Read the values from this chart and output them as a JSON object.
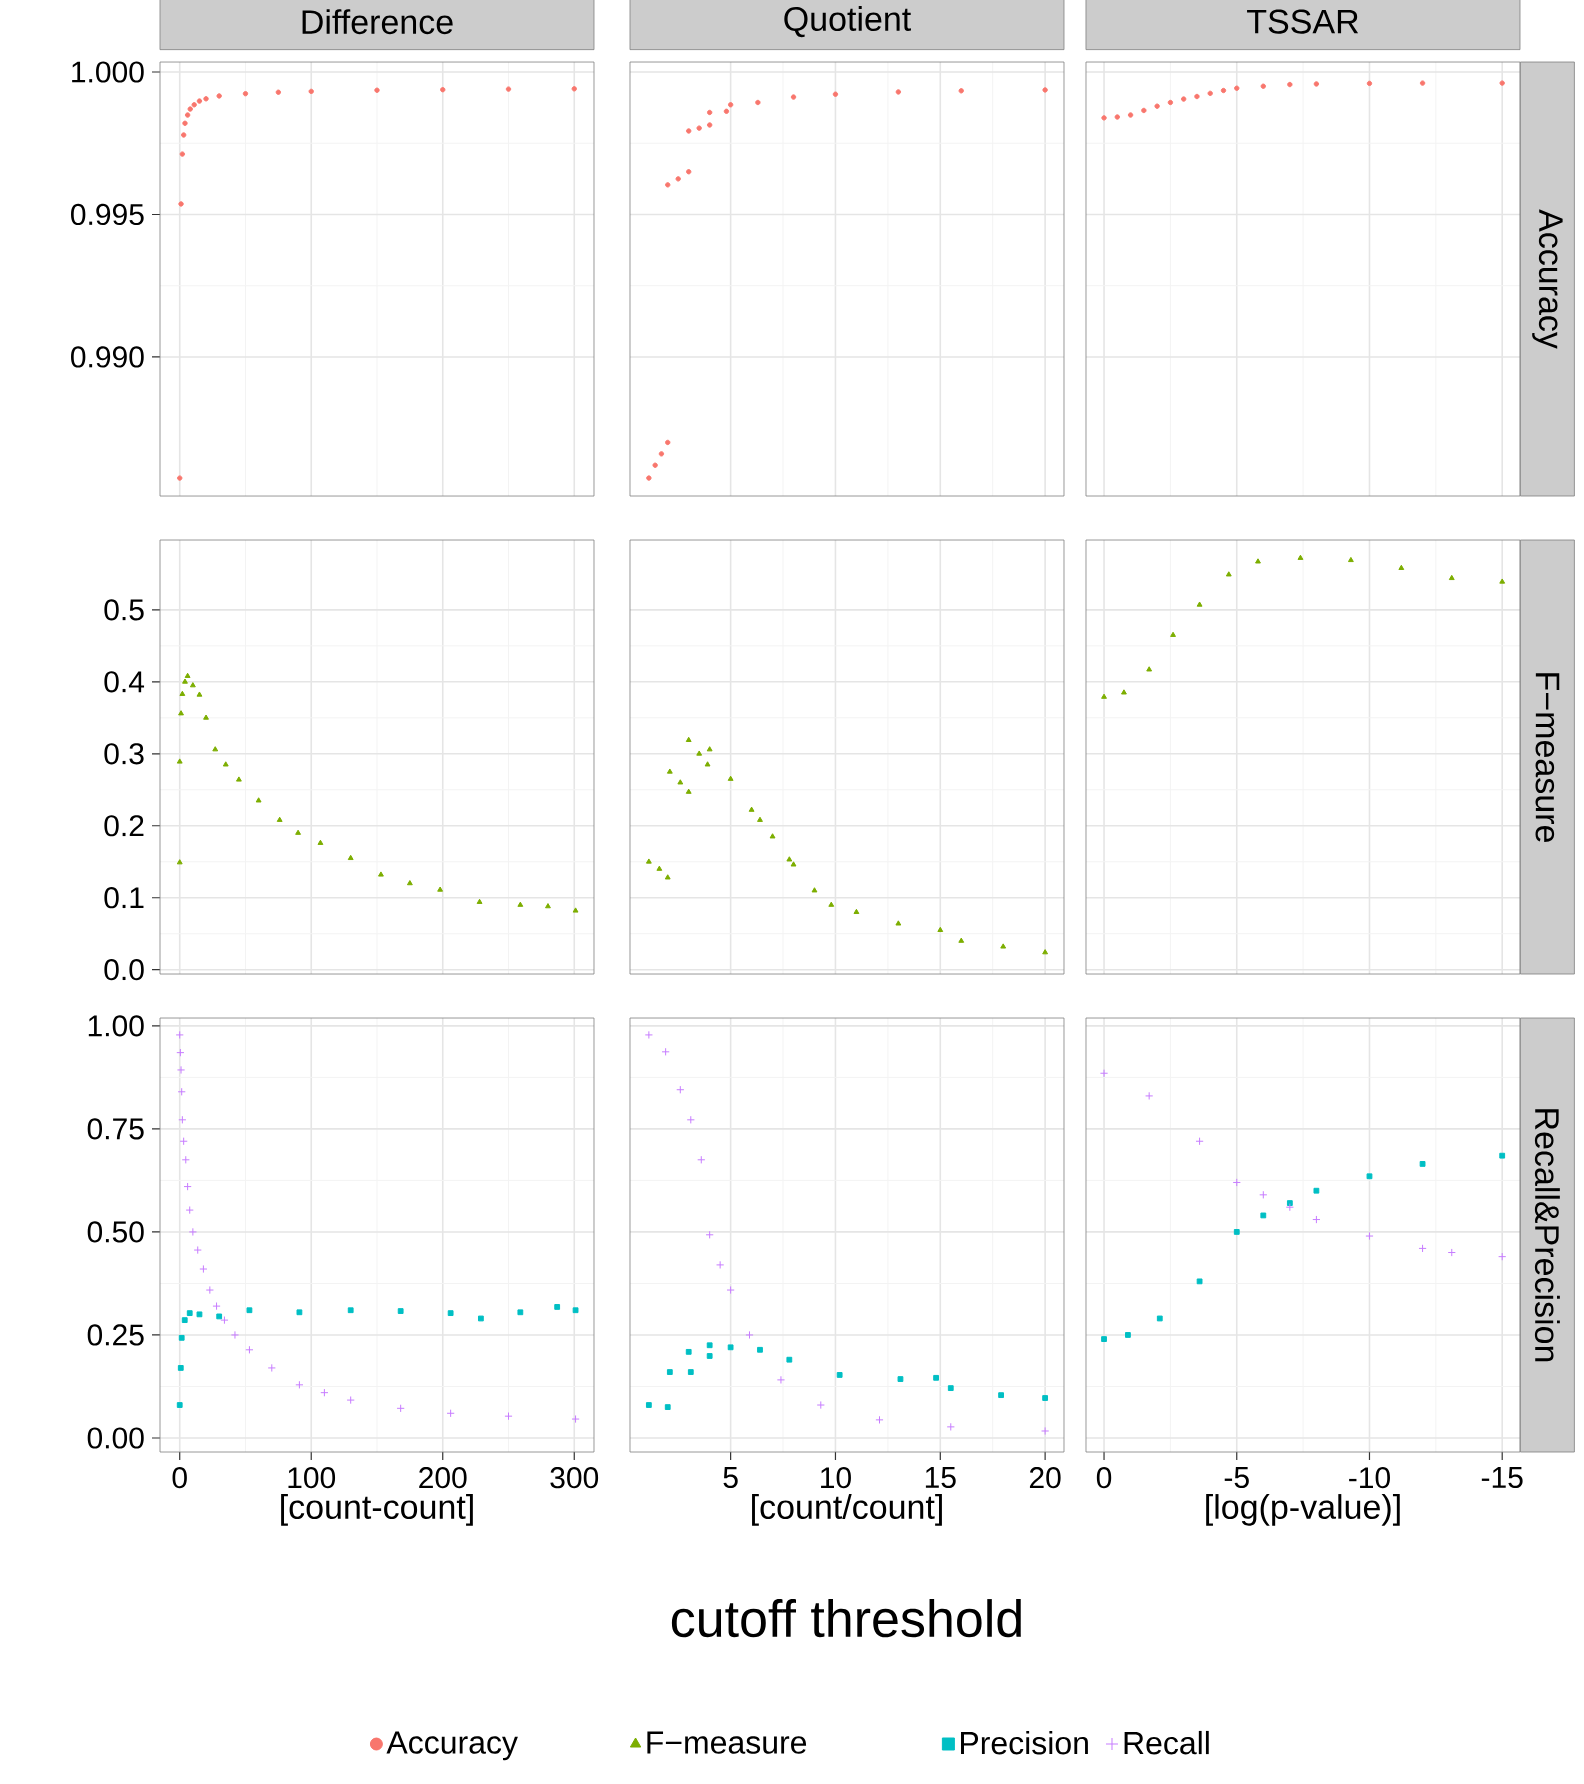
{
  "chart_data": [
    {
      "type": "scatter",
      "title": "Difference",
      "legend": "bottom",
      "xlim": [
        -15,
        315
      ],
      "xticks": [
        0,
        100,
        200,
        300
      ],
      "ylim": [
        0.98512,
        1.00035
      ],
      "yticks": [
        {
          "value": 0.99,
          "label": "0.990"
        },
        0.995,
        {
          "value": 1.0,
          "label": "1.000"
        }
      ],
      "grid": true,
      "tick_labels": "y",
      "series": [
        {
          "name": "Accuracy",
          "color": "#f8766d",
          "marker": "circle",
          "x": [
            0,
            1,
            2,
            3,
            4,
            6,
            8,
            11,
            15,
            20,
            30,
            50,
            75,
            100,
            150,
            200,
            250,
            300
          ],
          "values": [
            0.98575,
            0.99537,
            0.99712,
            0.99779,
            0.9982,
            0.99849,
            0.9987,
            0.99885,
            0.99898,
            0.99906,
            0.99916,
            0.99924,
            0.99929,
            0.99932,
            0.99936,
            0.99938,
            0.9994,
            0.99941
          ]
        }
      ]
    },
    {
      "type": "scatter",
      "title": "Quotient",
      "xlim": [
        0.2,
        20.9
      ],
      "xticks": [
        5,
        10,
        15,
        20
      ],
      "ylim": [
        0.98512,
        1.00035
      ],
      "yticks": [
        {
          "value": 0.99,
          "label": null
        },
        0.995,
        {
          "value": 1.0,
          "label": null
        }
      ],
      "grid": true,
      "tick_labels": false,
      "series": [
        {
          "color": "#f8766d",
          "marker": "circle",
          "x": [
            1.1,
            1.4,
            1.7,
            2.0,
            2.0,
            2.5,
            3.0,
            3.0,
            3.5,
            4.0,
            4.0,
            4.8,
            5.0,
            6.3,
            8,
            10,
            13,
            16,
            20
          ],
          "values": [
            0.98575,
            0.9862,
            0.9866,
            0.987,
            0.99604,
            0.99625,
            0.9965,
            0.99793,
            0.99803,
            0.99814,
            0.99858,
            0.99862,
            0.99885,
            0.99893,
            0.99912,
            0.99922,
            0.9993,
            0.99934,
            0.99937
          ]
        }
      ]
    },
    {
      "type": "scatter",
      "title": "TSSAR",
      "y2label": "Accuracy",
      "xlim": [
        0.68,
        -15.67
      ],
      "xticks": [
        0,
        -5,
        -10,
        -15
      ],
      "ylim": [
        0.98512,
        1.00035
      ],
      "yticks": [
        {
          "value": 0.99,
          "label": null
        },
        0.995,
        {
          "value": 1.0,
          "label": null
        }
      ],
      "grid": true,
      "tick_labels": false,
      "series": [
        {
          "color": "#f8766d",
          "marker": "circle",
          "x": [
            0,
            -0.5,
            -1,
            -1.5,
            -2,
            -2.5,
            -3,
            -3.5,
            -4,
            -4.5,
            -5,
            -6,
            -7,
            -8,
            -10,
            -12,
            -15
          ],
          "values": [
            0.99839,
            0.99842,
            0.99849,
            0.99865,
            0.9988,
            0.99893,
            0.99905,
            0.99914,
            0.99925,
            0.99935,
            0.99943,
            0.9995,
            0.99956,
            0.99958,
            0.9996,
            0.99961,
            0.99961
          ]
        }
      ]
    },
    {
      "type": "scatter",
      "legend": "bottom",
      "xlim": [
        -15,
        315
      ],
      "xticks": [
        0,
        100,
        200,
        300
      ],
      "ylim": [
        -0.006,
        0.597
      ],
      "yticks": [
        {
          "value": 0,
          "label": "0.0"
        },
        0.1,
        0.2,
        0.3,
        0.4,
        0.5
      ],
      "grid": true,
      "tick_labels": "y",
      "series": [
        {
          "name": "F−measure",
          "color": "#7cae00",
          "marker": "triangle",
          "x": [
            0,
            0,
            1,
            2,
            4,
            6,
            10,
            15,
            20,
            27,
            35,
            45,
            60,
            76,
            90,
            107,
            130,
            153,
            175,
            198,
            228,
            259,
            280,
            301
          ],
          "values": [
            0.149,
            0.289,
            0.356,
            0.383,
            0.4,
            0.408,
            0.395,
            0.382,
            0.35,
            0.306,
            0.285,
            0.264,
            0.235,
            0.208,
            0.19,
            0.176,
            0.155,
            0.132,
            0.12,
            0.111,
            0.094,
            0.09,
            0.088,
            0.082
          ]
        }
      ]
    },
    {
      "type": "scatter",
      "xlim": [
        0.2,
        20.9
      ],
      "xticks": [
        5,
        10,
        15,
        20
      ],
      "ylim": [
        -0.006,
        0.597
      ],
      "yticks": [
        {
          "value": 0,
          "label": null
        },
        0.1,
        0.2,
        0.3,
        0.4,
        0.5
      ],
      "grid": true,
      "tick_labels": false,
      "series": [
        {
          "color": "#7cae00",
          "marker": "triangle",
          "x": [
            1.1,
            1.6,
            2.0,
            2.1,
            2.6,
            3.0,
            3.0,
            3.5,
            3.9,
            4.0,
            5.0,
            6.0,
            6.4,
            7.0,
            7.8,
            8.0,
            9.0,
            9.8,
            11,
            13,
            15,
            16,
            18,
            20
          ],
          "values": [
            0.15,
            0.14,
            0.128,
            0.275,
            0.26,
            0.247,
            0.319,
            0.3,
            0.285,
            0.306,
            0.265,
            0.222,
            0.208,
            0.185,
            0.153,
            0.146,
            0.11,
            0.09,
            0.08,
            0.064,
            0.055,
            0.04,
            0.032,
            0.024
          ]
        }
      ]
    },
    {
      "type": "scatter",
      "y2label": "F−measure",
      "xlim": [
        0.68,
        -15.67
      ],
      "xticks": [
        0,
        -5,
        -10,
        -15
      ],
      "ylim": [
        -0.006,
        0.597
      ],
      "yticks": [
        {
          "value": 0,
          "label": null
        },
        0.1,
        0.2,
        0.3,
        0.4,
        0.5
      ],
      "grid": true,
      "tick_labels": false,
      "series": [
        {
          "color": "#7cae00",
          "marker": "triangle",
          "x": [
            0,
            -0.75,
            -1.7,
            -2.6,
            -3.6,
            -4.7,
            -5.8,
            -7.4,
            -9.3,
            -11.2,
            -13.1,
            -15
          ],
          "values": [
            0.379,
            0.385,
            0.417,
            0.465,
            0.507,
            0.549,
            0.567,
            0.572,
            0.569,
            0.558,
            0.544,
            0.539
          ]
        }
      ]
    },
    {
      "type": "scatter",
      "xlabel": "[count-count]",
      "legend": "bottom",
      "xlim": [
        -15,
        315
      ],
      "xticks": [
        0,
        100,
        200,
        300
      ],
      "ylim": [
        -0.034,
        1.019
      ],
      "yticks": [
        {
          "value": 0,
          "label": "0.00"
        },
        0.25,
        {
          "value": 0.5,
          "label": "0.50"
        },
        0.75,
        {
          "value": 1,
          "label": "1.00"
        }
      ],
      "grid": true,
      "series": [
        {
          "name": "Precision",
          "color": "#00bfc4",
          "marker": "square",
          "x": [
            0,
            0.8,
            1.5,
            3.8,
            7.6,
            15,
            30,
            53,
            91,
            130,
            168,
            206,
            229,
            259,
            287,
            301
          ],
          "values": [
            0.08,
            0.17,
            0.243,
            0.286,
            0.303,
            0.3,
            0.295,
            0.31,
            0.305,
            0.31,
            0.308,
            0.303,
            0.29,
            0.305,
            0.318,
            0.31
          ]
        },
        {
          "name": "Recall",
          "color": "#c77cff",
          "marker": "cross",
          "x": [
            0,
            0.5,
            1,
            1.5,
            2,
            3,
            4.6,
            6,
            7.6,
            10,
            13.7,
            18,
            22.9,
            28,
            34,
            42,
            53,
            70,
            91,
            110,
            130,
            168,
            206,
            250,
            301
          ],
          "values": [
            0.978,
            0.935,
            0.893,
            0.84,
            0.772,
            0.72,
            0.675,
            0.61,
            0.553,
            0.5,
            0.456,
            0.41,
            0.359,
            0.32,
            0.286,
            0.25,
            0.214,
            0.17,
            0.129,
            0.11,
            0.092,
            0.072,
            0.06,
            0.053,
            0.046
          ]
        }
      ]
    },
    {
      "type": "scatter",
      "xlabel": "[count/count]",
      "annotations": [
        "cutoff threshold"
      ],
      "xlim": [
        0.2,
        20.9
      ],
      "xticks": [
        5,
        10,
        15,
        20
      ],
      "ylim": [
        -0.034,
        1.019
      ],
      "yticks": [
        {
          "value": 0,
          "label": null
        },
        0.25,
        {
          "value": 0.5,
          "label": null
        },
        0.75,
        {
          "value": 1,
          "label": null
        }
      ],
      "grid": true,
      "tick_labels": "x",
      "series": [
        {
          "color": "#00bfc4",
          "marker": "square",
          "x": [
            1.1,
            2.0,
            2.1,
            3.1,
            3.0,
            4.0,
            4.0,
            5.0,
            6.4,
            7.8,
            10.2,
            13.1,
            14.8,
            15.5,
            17.9,
            20
          ],
          "values": [
            0.08,
            0.075,
            0.16,
            0.16,
            0.209,
            0.199,
            0.225,
            0.22,
            0.214,
            0.19,
            0.153,
            0.143,
            0.146,
            0.121,
            0.104,
            0.097
          ]
        },
        {
          "color": "#c77cff",
          "marker": "cross",
          "x": [
            1.1,
            1.9,
            2.6,
            3.1,
            3.6,
            4.0,
            4.5,
            5.0,
            5.9,
            7.4,
            9.3,
            12.1,
            15.5,
            20
          ],
          "values": [
            0.978,
            0.937,
            0.845,
            0.772,
            0.675,
            0.493,
            0.42,
            0.359,
            0.25,
            0.141,
            0.08,
            0.044,
            0.027,
            0.017
          ]
        }
      ]
    },
    {
      "type": "scatter",
      "xlabel": "[log(p-value)]",
      "y2label": "Recall&Precision",
      "xlim": [
        0.68,
        -15.67
      ],
      "xticks": [
        0,
        -5,
        -10,
        -15
      ],
      "ylim": [
        -0.034,
        1.019
      ],
      "yticks": [
        {
          "value": 0,
          "label": null
        },
        0.25,
        {
          "value": 0.5,
          "label": null
        },
        0.75,
        {
          "value": 1,
          "label": null
        }
      ],
      "grid": true,
      "tick_labels": "x",
      "series": [
        {
          "color": "#00bfc4",
          "marker": "square",
          "x": [
            0,
            -0.9,
            -2.1,
            -3.6,
            -5,
            -6,
            -7,
            -8,
            -10,
            -12,
            -15
          ],
          "values": [
            0.24,
            0.25,
            0.29,
            0.38,
            0.5,
            0.54,
            0.57,
            0.6,
            0.635,
            0.665,
            0.685
          ]
        },
        {
          "color": "#c77cff",
          "marker": "cross",
          "x": [
            0,
            -1.7,
            -3.6,
            -5,
            -6,
            -7,
            -8,
            -10,
            -12,
            -13.1,
            -15
          ],
          "values": [
            0.885,
            0.83,
            0.72,
            0.62,
            0.59,
            0.56,
            0.53,
            0.49,
            0.46,
            0.45,
            0.44
          ]
        }
      ]
    }
  ]
}
